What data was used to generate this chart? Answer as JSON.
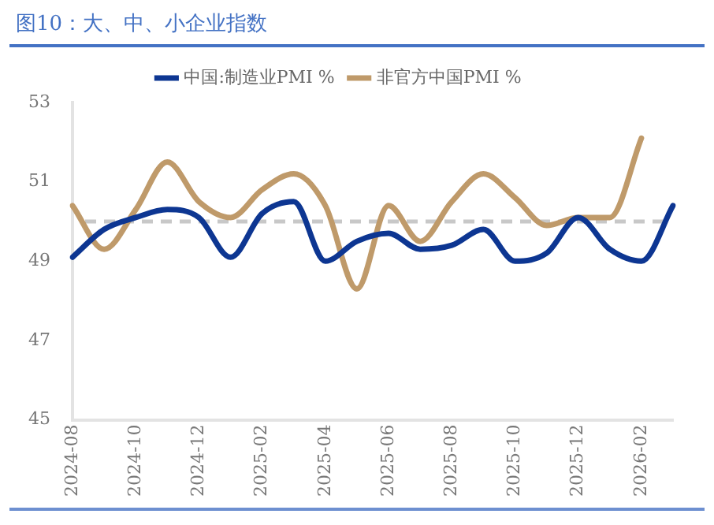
{
  "chart_data": {
    "type": "line",
    "title": "图10：大、中、小企业指数",
    "categories": [
      "2024-08",
      null,
      "2024-10",
      null,
      "2024-12",
      null,
      "2025-02",
      null,
      "2025-04",
      null,
      "2025-06",
      null,
      "2025-08",
      null,
      "2025-10",
      null,
      "2025-12",
      null,
      "2026-02",
      null
    ],
    "series": [
      {
        "name": "中国:制造业PMI %",
        "color": "#0d3692",
        "values": [
          49.1,
          49.8,
          50.1,
          50.3,
          50.1,
          49.1,
          50.2,
          50.5,
          49.0,
          49.5,
          49.7,
          49.3,
          49.4,
          49.8,
          49.0,
          49.2,
          50.1,
          49.3,
          49.0,
          50.4
        ]
      },
      {
        "name": "非官方中国PMI %",
        "color": "#bf9a6a",
        "values": [
          50.4,
          49.3,
          50.3,
          51.5,
          50.5,
          50.1,
          50.8,
          51.2,
          50.4,
          48.3,
          50.4,
          49.5,
          50.5,
          51.2,
          50.6,
          49.9,
          50.1,
          50.1,
          52.1,
          null
        ]
      }
    ],
    "ylim": [
      45,
      53
    ],
    "yticks": [
      45,
      47,
      49,
      51,
      53
    ],
    "grid": false,
    "legend": "top",
    "marker": "none",
    "line_style": "solid",
    "ref_lines": [
      {
        "axis": "y",
        "value": 50,
        "color": "#c8c8c8",
        "line_style": "dashed"
      }
    ]
  }
}
